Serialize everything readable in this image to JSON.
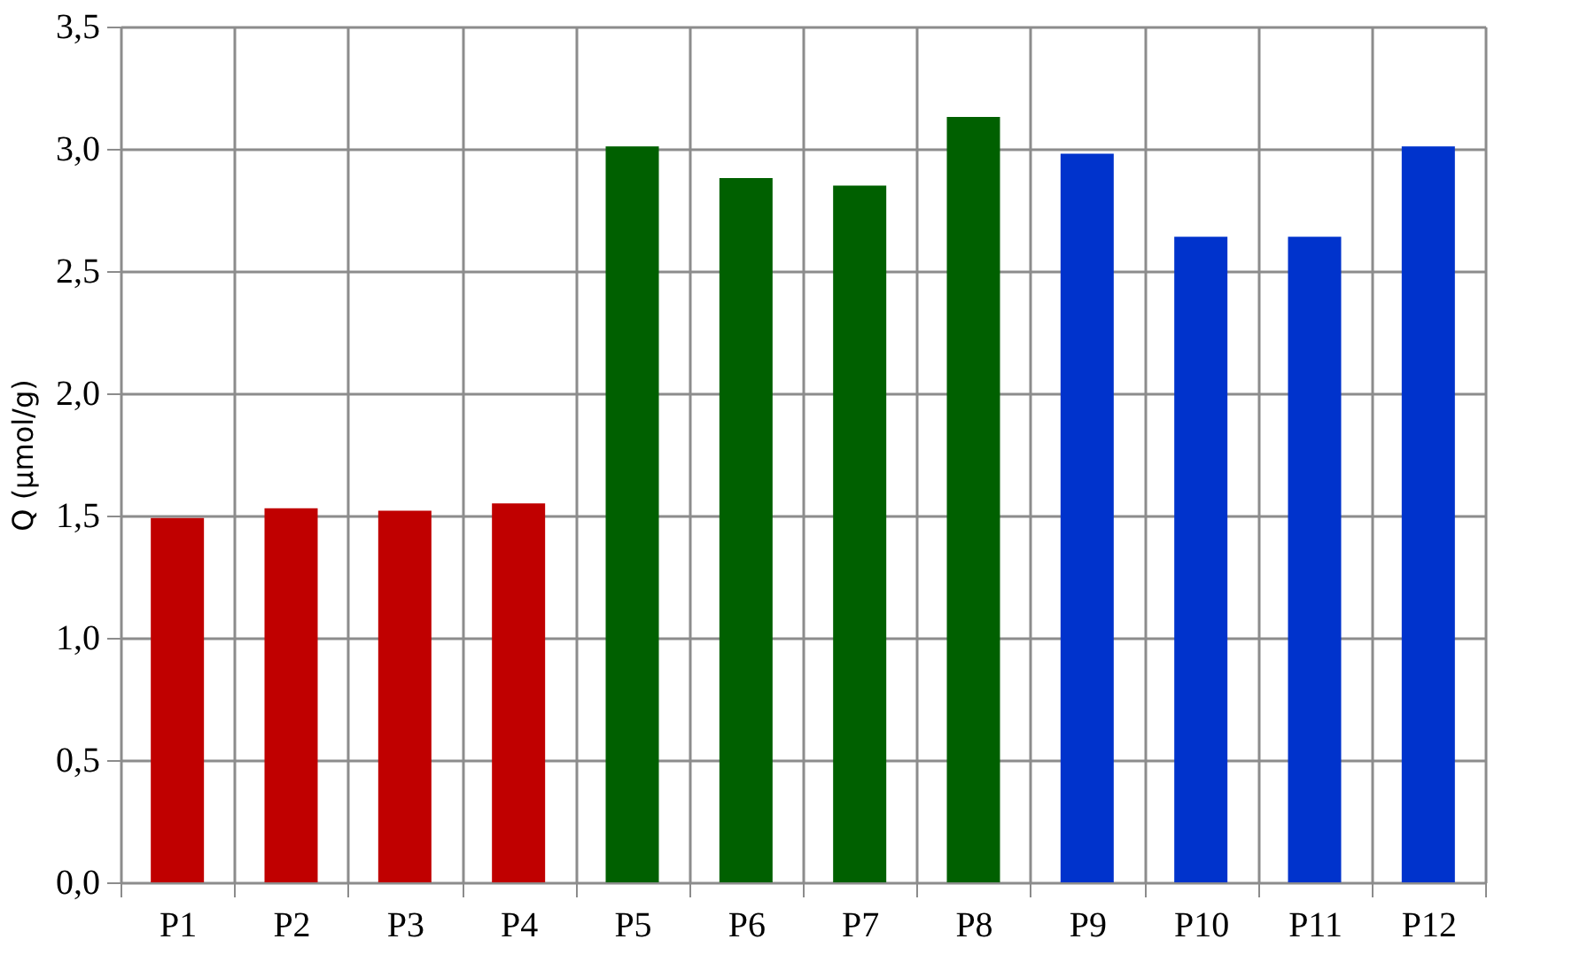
{
  "chart_data": {
    "type": "bar",
    "ylabel": "Q (µmol/g)",
    "categories": [
      "P1",
      "P2",
      "P3",
      "P4",
      "P5",
      "P6",
      "P7",
      "P8",
      "P9",
      "P10",
      "P11",
      "P12"
    ],
    "values": [
      1.49,
      1.53,
      1.52,
      1.55,
      3.01,
      2.88,
      2.85,
      3.13,
      2.98,
      2.64,
      2.64,
      3.01
    ],
    "colors": [
      "#c00000",
      "#c00000",
      "#c00000",
      "#c00000",
      "#006000",
      "#006000",
      "#006000",
      "#006000",
      "#0033cc",
      "#0033cc",
      "#0033cc",
      "#0033cc"
    ],
    "ylim": [
      0,
      3.5
    ],
    "yticks": [
      {
        "value": 0,
        "label": "0,0"
      },
      {
        "value": 0.5,
        "label": "0,5"
      },
      {
        "value": 1,
        "label": "1,0"
      },
      {
        "value": 1.5,
        "label": "1,5"
      },
      {
        "value": 2,
        "label": "2,0"
      },
      {
        "value": 2.5,
        "label": "2,5"
      },
      {
        "value": 3,
        "label": "3,0"
      },
      {
        "value": 3.5,
        "label": "3,5"
      }
    ],
    "grid": true
  }
}
